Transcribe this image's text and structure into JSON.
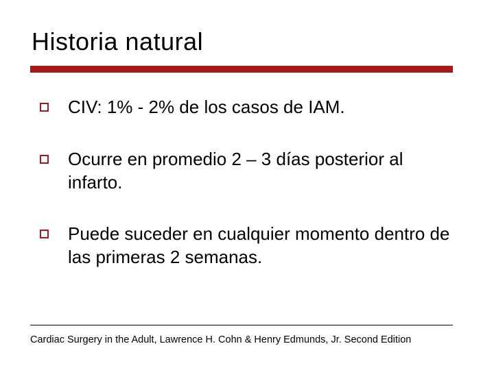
{
  "slide": {
    "title": "Historia natural",
    "bullets": [
      {
        "text": "CIV: 1% - 2% de los casos de IAM."
      },
      {
        "text": "Ocurre en promedio 2 – 3 días posterior al infarto."
      },
      {
        "text": "Puede suceder en cualquier momento dentro de las primeras 2 semanas."
      }
    ],
    "footer": "Cardiac Surgery in the Adult, Lawrence H. Cohn & Henry Edmunds, Jr. Second Edition"
  },
  "styling": {
    "type": "presentation-slide",
    "background_color": "#ffffff",
    "accent_color": "#a91818",
    "text_color": "#000000",
    "title_fontsize": 36,
    "body_fontsize": 26,
    "footer_fontsize": 14.5,
    "red_bar_height": 10,
    "bullet_marker": {
      "shape": "hollow-square",
      "size": 13,
      "border_width": 2,
      "border_color": "#a91818",
      "fill": "#ffffff"
    },
    "font_family_title_body": "Verdana",
    "font_family_footer": "Arial",
    "slide_width": 720,
    "slide_height": 540
  }
}
